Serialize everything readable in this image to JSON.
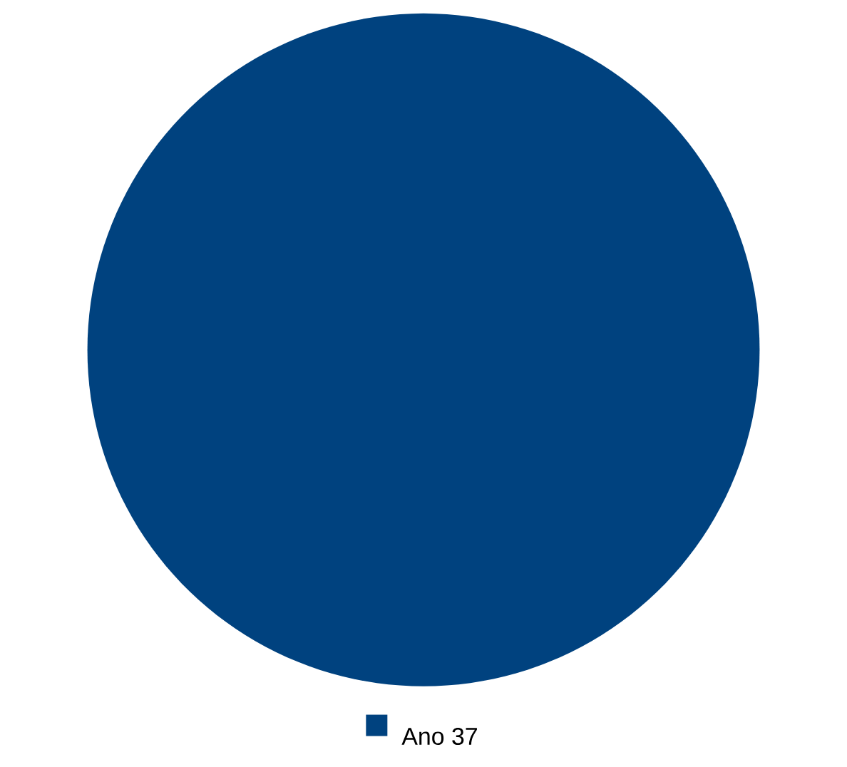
{
  "chart_data": {
    "type": "pie",
    "categories": [
      "Ano 37"
    ],
    "values": [
      100
    ],
    "colors": [
      "#00427f"
    ],
    "legend": "bottom"
  }
}
